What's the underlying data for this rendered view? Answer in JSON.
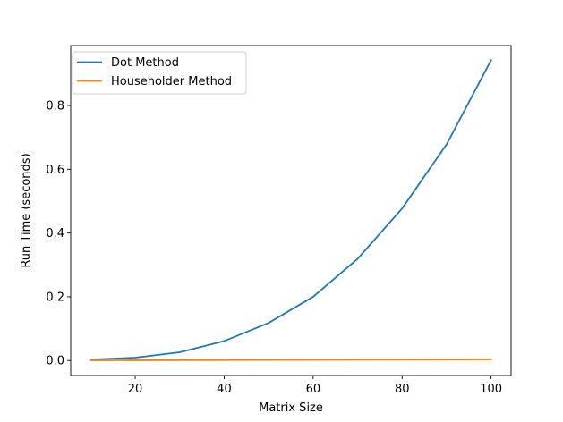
{
  "chart_data": {
    "type": "line",
    "title": "",
    "xlabel": "Matrix Size",
    "ylabel": "Run Time (seconds)",
    "xlim": [
      5.5,
      104.5
    ],
    "ylim": [
      -0.047,
      0.988
    ],
    "x_ticks": [
      20,
      40,
      60,
      80,
      100
    ],
    "y_ticks": [
      0.0,
      0.2,
      0.4,
      0.6,
      0.8
    ],
    "x_tick_labels": [
      "20",
      "40",
      "60",
      "80",
      "100"
    ],
    "y_tick_labels": [
      "0.0",
      "0.2",
      "0.4",
      "0.6",
      "0.8"
    ],
    "grid": false,
    "legend_position": "top-left",
    "x": [
      10,
      20,
      30,
      40,
      50,
      60,
      70,
      80,
      90,
      100
    ],
    "series": [
      {
        "name": "Dot Method",
        "color": "#1f77b4",
        "values": [
          0.003,
          0.009,
          0.026,
          0.061,
          0.118,
          0.2,
          0.319,
          0.477,
          0.678,
          0.942
        ]
      },
      {
        "name": "Householder Method",
        "color": "#ff7f0e",
        "values": [
          0.0005,
          0.0008,
          0.0011,
          0.0015,
          0.0018,
          0.0022,
          0.0026,
          0.003,
          0.0033,
          0.0037
        ]
      }
    ]
  }
}
